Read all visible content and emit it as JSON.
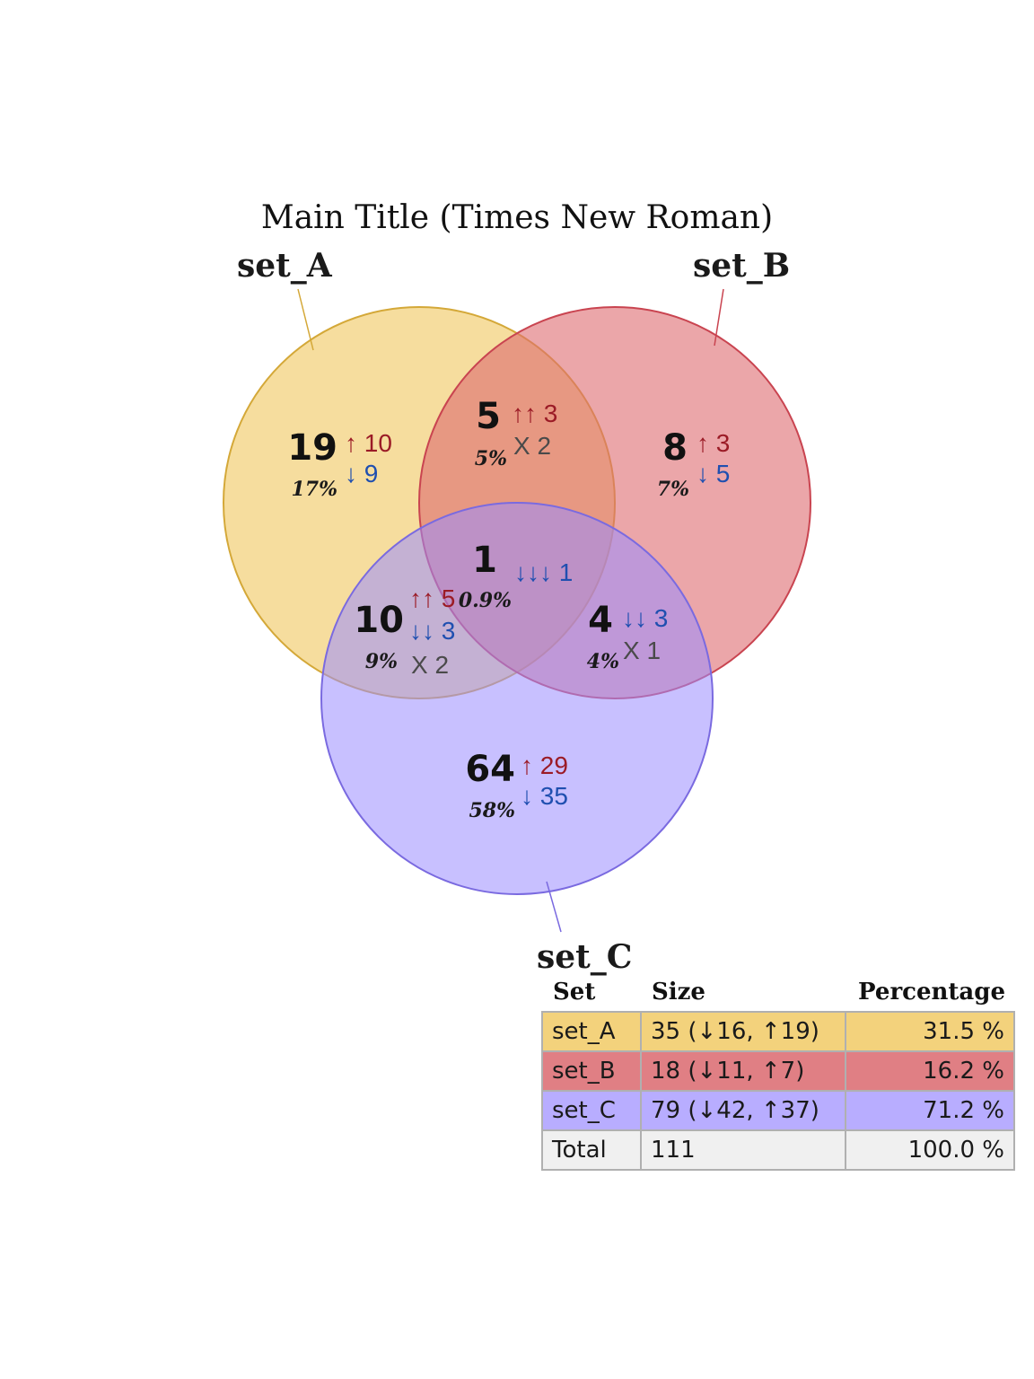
{
  "title": "Main Title (Times New Roman)",
  "colors": {
    "up": "#9b1b26",
    "down": "#1f4fb0",
    "mixed": "#4a4a4a",
    "set_A": "#f0c75e",
    "set_B": "#dd6a70",
    "set_C": "#9a8cff",
    "total_bg": "#f0f0f0"
  },
  "sets": [
    {
      "name": "set_A",
      "fill": "#f0c75e",
      "stroke": "#d4a838"
    },
    {
      "name": "set_B",
      "fill": "#dd6a70",
      "stroke": "#c94450"
    },
    {
      "name": "set_C",
      "fill": "#9a8cff",
      "stroke": "#7a6ae0"
    }
  ],
  "regions": [
    {
      "id": "A_only",
      "count": "19",
      "pct": "17%",
      "up": "↑ 10",
      "down": "↓ 9",
      "mixed": ""
    },
    {
      "id": "B_only",
      "count": "8",
      "pct": "7%",
      "up": "↑ 3",
      "down": "↓ 5",
      "mixed": ""
    },
    {
      "id": "C_only",
      "count": "64",
      "pct": "58%",
      "up": "↑ 29",
      "down": "↓ 35",
      "mixed": ""
    },
    {
      "id": "AB",
      "count": "5",
      "pct": "5%",
      "up": "↑↑ 3",
      "down": "",
      "mixed": "X 2"
    },
    {
      "id": "AC",
      "count": "10",
      "pct": "9%",
      "up": "↑↑ 5",
      "down": "↓↓ 3",
      "mixed": "X 2"
    },
    {
      "id": "BC",
      "count": "4",
      "pct": "4%",
      "up": "",
      "down": "↓↓ 3",
      "mixed": "X 1"
    },
    {
      "id": "ABC",
      "count": "1",
      "pct": "0.9%",
      "up": "",
      "down": "↓↓↓ 1",
      "mixed": ""
    }
  ],
  "table": {
    "headers": [
      "Set",
      "Size",
      "Percentage"
    ],
    "rows": [
      {
        "set": "set_A",
        "size": "35 (↓16, ↑19)",
        "percentage": "31.5 %",
        "bg": "#f3d27c"
      },
      {
        "set": "set_B",
        "size": "18 (↓11, ↑7)",
        "percentage": "16.2 %",
        "bg": "#e07f84"
      },
      {
        "set": "set_C",
        "size": "79 (↓42, ↑37)",
        "percentage": "71.2 %",
        "bg": "#b8adff"
      },
      {
        "set": "Total",
        "size": "111",
        "percentage": "100.0 %",
        "bg": "#f0f0f0"
      }
    ]
  }
}
